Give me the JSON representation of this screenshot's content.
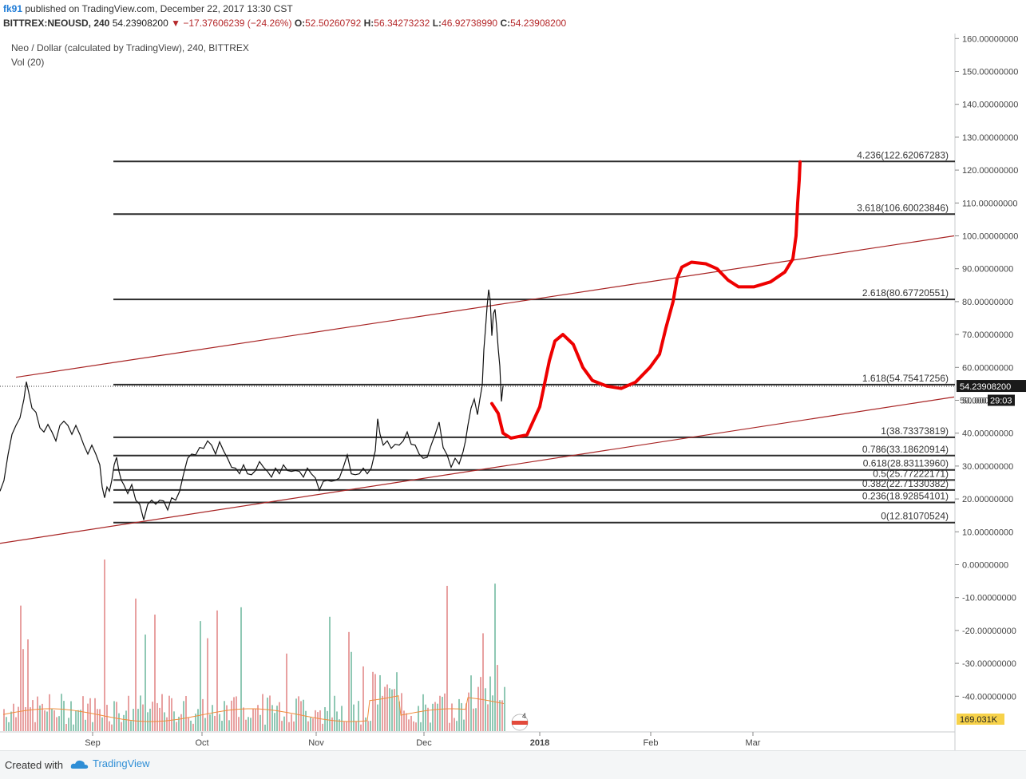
{
  "header": {
    "author": "fk91",
    "published": " published on TradingView.com, December 22, 2017 13:30 CST",
    "symbol": "BITTREX:NEOUSD, 240",
    "last": "54.23908200",
    "change": "−17.37606239 (−24.26%)",
    "o_label": "O:",
    "o": "52.50260792",
    "h_label": "H:",
    "h": "56.34273232",
    "l_label": "L:",
    "l": "46.92738990",
    "c_label": "C:",
    "c": "54.23908200"
  },
  "legend": {
    "title": "Neo / Dollar (calculated by TradingView), 240, BITTREX",
    "volume": "Vol (20)"
  },
  "footer": {
    "created_with": "Created with",
    "brand": "TradingView"
  },
  "chart_data": {
    "type": "line",
    "title": "Neo / Dollar (calculated by TradingView), 240, BITTREX",
    "y_axis": {
      "range": [
        -52,
        162
      ],
      "ticks": [
        "160.00000000",
        "150.00000000",
        "140.00000000",
        "130.00000000",
        "120.00000000",
        "110.00000000",
        "100.00000000",
        "90.00000000",
        "80.00000000",
        "70.00000000",
        "60.00000000",
        "50.00000000",
        "40.00000000",
        "30.00000000",
        "20.00000000",
        "10.00000000",
        "0.00000000",
        "-10.00000000",
        "-20.00000000",
        "-30.00000000",
        "-40.00000000"
      ],
      "tick_values": [
        160,
        150,
        140,
        130,
        120,
        110,
        100,
        90,
        80,
        70,
        60,
        50,
        40,
        30,
        20,
        10,
        0,
        -10,
        -20,
        -30,
        -40
      ]
    },
    "x_axis": {
      "labels": [
        "Sep",
        "Oct",
        "Nov",
        "Dec",
        "2018",
        "Feb",
        "Mar"
      ]
    },
    "last_price": {
      "label": "54.23908200",
      "value": 54.239
    },
    "secondary_label": {
      "price": "50.000",
      "timer": "29:03"
    },
    "volume_label": "169.031K",
    "fib_levels": [
      {
        "label": "4.236(122.62067283)",
        "value": 122.62
      },
      {
        "label": "3.618(106.60023846)",
        "value": 106.6
      },
      {
        "label": "2.618(80.67720551)",
        "value": 80.68
      },
      {
        "label": "1.618(54.75417256)",
        "value": 54.75
      },
      {
        "label": "1(38.73373819)",
        "value": 38.73
      },
      {
        "label": "0.786(33.18620914)",
        "value": 33.19
      },
      {
        "label": "0.618(28.83113960)",
        "value": 28.83
      },
      {
        "label": "0.5(25.77222171)",
        "value": 25.77
      },
      {
        "label": "0.382(22.71330382)",
        "value": 22.71
      },
      {
        "label": "0.236(18.92854101)",
        "value": 18.93
      },
      {
        "label": "0(12.81070524)",
        "value": 12.81
      }
    ],
    "price_series": [
      [
        0,
        22
      ],
      [
        5,
        26
      ],
      [
        10,
        33
      ],
      [
        15,
        40
      ],
      [
        20,
        42
      ],
      [
        25,
        45
      ],
      [
        30,
        50
      ],
      [
        33,
        56
      ],
      [
        36,
        52
      ],
      [
        40,
        48
      ],
      [
        45,
        46
      ],
      [
        50,
        42
      ],
      [
        55,
        40
      ],
      [
        60,
        43
      ],
      [
        65,
        40
      ],
      [
        70,
        38
      ],
      [
        75,
        42
      ],
      [
        80,
        44
      ],
      [
        85,
        42
      ],
      [
        90,
        40
      ],
      [
        95,
        42
      ],
      [
        100,
        40
      ],
      [
        105,
        36
      ],
      [
        110,
        34
      ],
      [
        115,
        36
      ],
      [
        120,
        34
      ],
      [
        125,
        30
      ],
      [
        128,
        24
      ],
      [
        131,
        20
      ],
      [
        134,
        24
      ],
      [
        137,
        22
      ],
      [
        140,
        26
      ],
      [
        143,
        30
      ],
      [
        146,
        33
      ],
      [
        149,
        28
      ],
      [
        152,
        26
      ],
      [
        155,
        24
      ],
      [
        160,
        22
      ],
      [
        165,
        24
      ],
      [
        170,
        20
      ],
      [
        175,
        18
      ],
      [
        180,
        14
      ],
      [
        185,
        18
      ],
      [
        190,
        20
      ],
      [
        195,
        18
      ],
      [
        200,
        20
      ],
      [
        205,
        19
      ],
      [
        210,
        17
      ],
      [
        215,
        20
      ],
      [
        220,
        20
      ],
      [
        225,
        22
      ],
      [
        230,
        28
      ],
      [
        235,
        32
      ],
      [
        240,
        34
      ],
      [
        245,
        33
      ],
      [
        250,
        36
      ],
      [
        255,
        35
      ],
      [
        260,
        38
      ],
      [
        265,
        36
      ],
      [
        270,
        34
      ],
      [
        275,
        37
      ],
      [
        280,
        35
      ],
      [
        285,
        32
      ],
      [
        290,
        30
      ],
      [
        295,
        29
      ],
      [
        300,
        28
      ],
      [
        305,
        30
      ],
      [
        310,
        28
      ],
      [
        315,
        27
      ],
      [
        320,
        29
      ],
      [
        325,
        31
      ],
      [
        330,
        30
      ],
      [
        335,
        28
      ],
      [
        340,
        27
      ],
      [
        345,
        29
      ],
      [
        350,
        28
      ],
      [
        355,
        30
      ],
      [
        360,
        29
      ],
      [
        365,
        28
      ],
      [
        370,
        29
      ],
      [
        375,
        28
      ],
      [
        380,
        27
      ],
      [
        385,
        29
      ],
      [
        390,
        28
      ],
      [
        395,
        26
      ],
      [
        400,
        23
      ],
      [
        405,
        25
      ],
      [
        410,
        26
      ],
      [
        415,
        25
      ],
      [
        420,
        26
      ],
      [
        425,
        26
      ],
      [
        430,
        30
      ],
      [
        435,
        33
      ],
      [
        440,
        28
      ],
      [
        445,
        27
      ],
      [
        450,
        28
      ],
      [
        455,
        29
      ],
      [
        460,
        28
      ],
      [
        465,
        29
      ],
      [
        470,
        35
      ],
      [
        473,
        44
      ],
      [
        476,
        40
      ],
      [
        480,
        36
      ],
      [
        485,
        38
      ],
      [
        490,
        35
      ],
      [
        495,
        37
      ],
      [
        500,
        36
      ],
      [
        505,
        38
      ],
      [
        510,
        40
      ],
      [
        515,
        37
      ],
      [
        520,
        36
      ],
      [
        525,
        34
      ],
      [
        530,
        32
      ],
      [
        535,
        33
      ],
      [
        540,
        36
      ],
      [
        545,
        40
      ],
      [
        550,
        43
      ],
      [
        555,
        36
      ],
      [
        560,
        33
      ],
      [
        565,
        30
      ],
      [
        570,
        32
      ],
      [
        575,
        31
      ],
      [
        580,
        34
      ],
      [
        583,
        38
      ],
      [
        586,
        42
      ],
      [
        590,
        48
      ],
      [
        594,
        50
      ],
      [
        598,
        46
      ],
      [
        601,
        50
      ],
      [
        604,
        55
      ],
      [
        606,
        65
      ],
      [
        608,
        72
      ],
      [
        610,
        78
      ],
      [
        612,
        84
      ],
      [
        614,
        80
      ],
      [
        616,
        70
      ],
      [
        618,
        76
      ],
      [
        620,
        78
      ],
      [
        622,
        72
      ],
      [
        624,
        66
      ],
      [
        626,
        60
      ],
      [
        628,
        50
      ],
      [
        630,
        54
      ]
    ],
    "projection": [
      [
        616,
        49
      ],
      [
        624,
        46
      ],
      [
        630,
        40
      ],
      [
        640,
        38.5
      ],
      [
        660,
        39.5
      ],
      [
        676,
        48
      ],
      [
        688,
        62
      ],
      [
        695,
        68
      ],
      [
        705,
        70
      ],
      [
        718,
        67
      ],
      [
        730,
        60
      ],
      [
        742,
        56
      ],
      [
        760,
        54.3
      ],
      [
        778,
        53.6
      ],
      [
        796,
        55.5
      ],
      [
        814,
        60
      ],
      [
        826,
        64
      ],
      [
        834,
        72
      ],
      [
        843,
        80
      ],
      [
        848,
        87
      ],
      [
        854,
        90.5
      ],
      [
        866,
        92
      ],
      [
        884,
        91.5
      ],
      [
        898,
        90
      ],
      [
        912,
        86.5
      ],
      [
        925,
        84.5
      ],
      [
        944,
        84.5
      ],
      [
        965,
        86
      ],
      [
        983,
        89
      ],
      [
        993,
        93
      ],
      [
        997,
        100
      ],
      [
        999,
        110
      ],
      [
        1001,
        117
      ],
      [
        1002,
        122.5
      ]
    ],
    "trend_upper": {
      "x1": 20,
      "y1": 57,
      "x2": 1195,
      "y2": 100
    },
    "trend_lower": {
      "x1": 0,
      "y1": 6.5,
      "x2": 1195,
      "y2": 51
    },
    "fib_x_start": 142,
    "volume_max": 100
  },
  "colors": {
    "price": "#111111",
    "fib": "#2b2b2b",
    "trend": "#a82424",
    "projection": "#ee0000",
    "vol_up": "#8fc8b4",
    "vol_down": "#e8a1a1",
    "vol_ma": "#f08c3a"
  }
}
